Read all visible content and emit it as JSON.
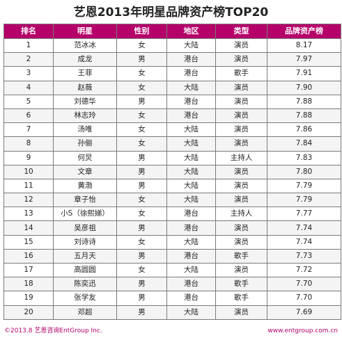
{
  "title": "艺恩2013年明星品牌资产榜TOP20",
  "colors": {
    "header_bg": "#b5006a",
    "header_text": "#ffffff",
    "footer_text": "#b5006a"
  },
  "table": {
    "columns": [
      "排名",
      "明星",
      "性别",
      "地区",
      "类型",
      "品牌资产榜"
    ],
    "rows": [
      [
        "1",
        "范冰冰",
        "女",
        "大陆",
        "演员",
        "8.17"
      ],
      [
        "2",
        "成龙",
        "男",
        "港台",
        "演员",
        "7.97"
      ],
      [
        "3",
        "王菲",
        "女",
        "港台",
        "歌手",
        "7.91"
      ],
      [
        "4",
        "赵薇",
        "女",
        "大陆",
        "演员",
        "7.90"
      ],
      [
        "5",
        "刘德华",
        "男",
        "港台",
        "演员",
        "7.88"
      ],
      [
        "6",
        "林志玲",
        "女",
        "港台",
        "演员",
        "7.88"
      ],
      [
        "7",
        "汤唯",
        "女",
        "大陆",
        "演员",
        "7.86"
      ],
      [
        "8",
        "孙俪",
        "女",
        "大陆",
        "演员",
        "7.84"
      ],
      [
        "9",
        "何炅",
        "男",
        "大陆",
        "主持人",
        "7.83"
      ],
      [
        "10",
        "文章",
        "男",
        "大陆",
        "演员",
        "7.80"
      ],
      [
        "11",
        "黄渤",
        "男",
        "大陆",
        "演员",
        "7.79"
      ],
      [
        "12",
        "章子怡",
        "女",
        "大陆",
        "演员",
        "7.79"
      ],
      [
        "13",
        "小S（徐熙娣）",
        "女",
        "港台",
        "主持人",
        "7.77"
      ],
      [
        "14",
        "吴彦祖",
        "男",
        "港台",
        "演员",
        "7.74"
      ],
      [
        "15",
        "刘诗诗",
        "女",
        "大陆",
        "演员",
        "7.74"
      ],
      [
        "16",
        "五月天",
        "男",
        "港台",
        "歌手",
        "7.73"
      ],
      [
        "17",
        "高圆圆",
        "女",
        "大陆",
        "演员",
        "7.72"
      ],
      [
        "18",
        "陈奕迅",
        "男",
        "港台",
        "歌手",
        "7.70"
      ],
      [
        "19",
        "张学友",
        "男",
        "港台",
        "歌手",
        "7.70"
      ],
      [
        "20",
        "邓超",
        "男",
        "大陆",
        "演员",
        "7.69"
      ]
    ]
  },
  "footer": {
    "copyright": "©2013.8 艺恩咨询EntGroup Inc.",
    "website": "www.entgroup.com.cn"
  }
}
